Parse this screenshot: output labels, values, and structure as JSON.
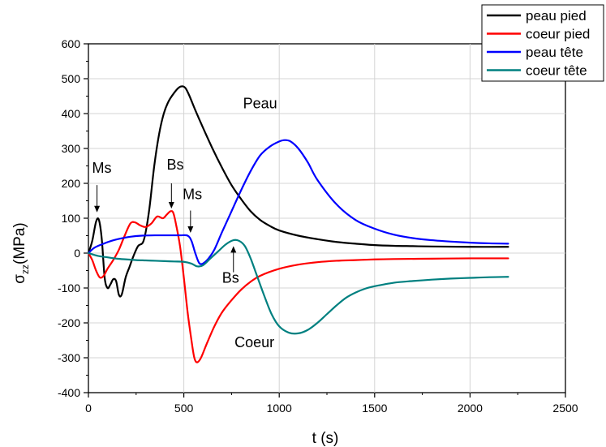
{
  "chart_data": {
    "type": "line",
    "xlabel": "t (s)",
    "ylabel_main": "σ",
    "ylabel_sub": "zz",
    "ylabel_unit": "(MPa)",
    "xlim": [
      0,
      2500
    ],
    "ylim": [
      -400,
      600
    ],
    "xticks": [
      0,
      500,
      1000,
      1500,
      2000,
      2500
    ],
    "yticks": [
      -400,
      -300,
      -200,
      -100,
      0,
      100,
      200,
      300,
      400,
      500,
      600
    ],
    "grid": true,
    "legend_position": "top-right",
    "series": [
      {
        "name": "peau pied",
        "color": "#000000",
        "points": [
          [
            0,
            0
          ],
          [
            20,
            35
          ],
          [
            40,
            90
          ],
          [
            55,
            95
          ],
          [
            70,
            40
          ],
          [
            85,
            -70
          ],
          [
            100,
            -100
          ],
          [
            115,
            -90
          ],
          [
            130,
            -75
          ],
          [
            145,
            -80
          ],
          [
            160,
            -120
          ],
          [
            175,
            -118
          ],
          [
            195,
            -70
          ],
          [
            215,
            -40
          ],
          [
            235,
            -10
          ],
          [
            260,
            20
          ],
          [
            285,
            30
          ],
          [
            300,
            60
          ],
          [
            320,
            130
          ],
          [
            345,
            250
          ],
          [
            370,
            340
          ],
          [
            395,
            400
          ],
          [
            420,
            435
          ],
          [
            450,
            460
          ],
          [
            475,
            475
          ],
          [
            495,
            478
          ],
          [
            510,
            472
          ],
          [
            530,
            450
          ],
          [
            560,
            410
          ],
          [
            600,
            360
          ],
          [
            650,
            300
          ],
          [
            700,
            245
          ],
          [
            750,
            195
          ],
          [
            800,
            155
          ],
          [
            850,
            120
          ],
          [
            900,
            95
          ],
          [
            950,
            78
          ],
          [
            1000,
            65
          ],
          [
            1100,
            50
          ],
          [
            1200,
            40
          ],
          [
            1300,
            32
          ],
          [
            1400,
            27
          ],
          [
            1500,
            23
          ],
          [
            1600,
            21
          ],
          [
            1700,
            20
          ],
          [
            1800,
            19
          ],
          [
            2000,
            18
          ],
          [
            2200,
            18
          ]
        ]
      },
      {
        "name": "coeur pied",
        "color": "#ff0000",
        "points": [
          [
            0,
            0
          ],
          [
            20,
            -20
          ],
          [
            40,
            -50
          ],
          [
            60,
            -70
          ],
          [
            80,
            -65
          ],
          [
            100,
            -45
          ],
          [
            130,
            -20
          ],
          [
            160,
            10
          ],
          [
            190,
            50
          ],
          [
            220,
            85
          ],
          [
            245,
            88
          ],
          [
            270,
            80
          ],
          [
            300,
            75
          ],
          [
            330,
            85
          ],
          [
            360,
            105
          ],
          [
            390,
            100
          ],
          [
            410,
            110
          ],
          [
            430,
            120
          ],
          [
            445,
            115
          ],
          [
            460,
            80
          ],
          [
            480,
            20
          ],
          [
            500,
            -70
          ],
          [
            520,
            -170
          ],
          [
            540,
            -250
          ],
          [
            555,
            -300
          ],
          [
            570,
            -313
          ],
          [
            590,
            -300
          ],
          [
            620,
            -260
          ],
          [
            660,
            -210
          ],
          [
            700,
            -170
          ],
          [
            750,
            -135
          ],
          [
            800,
            -105
          ],
          [
            850,
            -82
          ],
          [
            900,
            -65
          ],
          [
            1000,
            -45
          ],
          [
            1100,
            -33
          ],
          [
            1200,
            -26
          ],
          [
            1300,
            -22
          ],
          [
            1400,
            -20
          ],
          [
            1500,
            -18
          ],
          [
            1600,
            -17
          ],
          [
            1800,
            -16
          ],
          [
            2000,
            -15
          ],
          [
            2200,
            -15
          ]
        ]
      },
      {
        "name": "peau tête",
        "color": "#0000ff",
        "points": [
          [
            0,
            0
          ],
          [
            30,
            15
          ],
          [
            70,
            25
          ],
          [
            120,
            35
          ],
          [
            170,
            42
          ],
          [
            220,
            47
          ],
          [
            280,
            50
          ],
          [
            350,
            51
          ],
          [
            420,
            51
          ],
          [
            480,
            51
          ],
          [
            520,
            50
          ],
          [
            540,
            35
          ],
          [
            560,
            0
          ],
          [
            580,
            -28
          ],
          [
            600,
            -30
          ],
          [
            630,
            -15
          ],
          [
            660,
            10
          ],
          [
            700,
            60
          ],
          [
            750,
            120
          ],
          [
            800,
            180
          ],
          [
            850,
            235
          ],
          [
            900,
            280
          ],
          [
            950,
            305
          ],
          [
            1000,
            320
          ],
          [
            1030,
            324
          ],
          [
            1060,
            320
          ],
          [
            1100,
            300
          ],
          [
            1150,
            260
          ],
          [
            1200,
            210
          ],
          [
            1300,
            140
          ],
          [
            1400,
            95
          ],
          [
            1500,
            70
          ],
          [
            1600,
            53
          ],
          [
            1700,
            43
          ],
          [
            1800,
            37
          ],
          [
            1900,
            33
          ],
          [
            2000,
            30
          ],
          [
            2100,
            28
          ],
          [
            2200,
            27
          ]
        ]
      },
      {
        "name": "coeur tête",
        "color": "#008080",
        "points": [
          [
            0,
            0
          ],
          [
            50,
            -8
          ],
          [
            100,
            -12
          ],
          [
            150,
            -16
          ],
          [
            200,
            -18
          ],
          [
            250,
            -20
          ],
          [
            300,
            -21
          ],
          [
            350,
            -22
          ],
          [
            400,
            -23
          ],
          [
            450,
            -24
          ],
          [
            500,
            -25
          ],
          [
            540,
            -30
          ],
          [
            570,
            -38
          ],
          [
            600,
            -35
          ],
          [
            640,
            -15
          ],
          [
            680,
            5
          ],
          [
            720,
            25
          ],
          [
            760,
            37
          ],
          [
            790,
            35
          ],
          [
            820,
            20
          ],
          [
            850,
            -15
          ],
          [
            880,
            -60
          ],
          [
            920,
            -120
          ],
          [
            960,
            -175
          ],
          [
            1000,
            -210
          ],
          [
            1050,
            -228
          ],
          [
            1100,
            -230
          ],
          [
            1150,
            -220
          ],
          [
            1200,
            -200
          ],
          [
            1250,
            -175
          ],
          [
            1300,
            -150
          ],
          [
            1350,
            -128
          ],
          [
            1400,
            -113
          ],
          [
            1450,
            -102
          ],
          [
            1500,
            -95
          ],
          [
            1600,
            -85
          ],
          [
            1700,
            -80
          ],
          [
            1800,
            -76
          ],
          [
            1900,
            -73
          ],
          [
            2000,
            -71
          ],
          [
            2100,
            -69
          ],
          [
            2200,
            -68
          ]
        ]
      }
    ],
    "annotations": [
      {
        "text": "Ms",
        "x": 70,
        "y": 230
      },
      {
        "text": "Bs",
        "x": 455,
        "y": 240
      },
      {
        "text": "Ms",
        "x": 545,
        "y": 155
      },
      {
        "text": "Peau",
        "x": 900,
        "y": 415
      },
      {
        "text": "Bs",
        "x": 745,
        "y": -85
      },
      {
        "text": "Coeur",
        "x": 870,
        "y": -270
      }
    ],
    "arrows": [
      {
        "x": 45,
        "from_y": 195,
        "to_y": 117
      },
      {
        "x": 435,
        "from_y": 200,
        "to_y": 128
      },
      {
        "x": 535,
        "from_y": 122,
        "to_y": 58
      },
      {
        "x": 760,
        "from_y": -55,
        "to_y": 20
      }
    ]
  }
}
